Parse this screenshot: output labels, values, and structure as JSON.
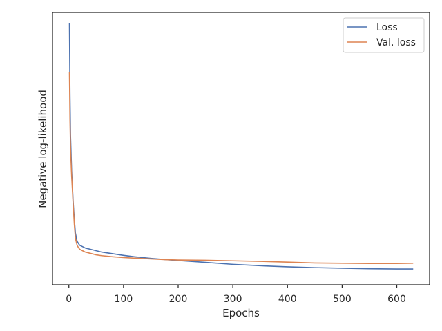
{
  "chart_data": {
    "type": "line",
    "title": "",
    "xlabel": "Epochs",
    "ylabel": "Negative log-likelihood",
    "xlim": [
      -30,
      660
    ],
    "ylim": [
      0,
      1.0
    ],
    "x_ticks": [
      0,
      100,
      200,
      300,
      400,
      500,
      600
    ],
    "y_ticks_shown": false,
    "grid": false,
    "legend_position": "top-right",
    "series": [
      {
        "name": "Loss",
        "color": "#4c72b0",
        "x": [
          1,
          2,
          3,
          5,
          8,
          10,
          12,
          15,
          18,
          20,
          25,
          30,
          40,
          50,
          60,
          80,
          100,
          120,
          150,
          180,
          200,
          250,
          300,
          350,
          400,
          450,
          500,
          550,
          600,
          630
        ],
        "y": [
          0.96,
          0.7,
          0.55,
          0.42,
          0.3,
          0.24,
          0.19,
          0.16,
          0.15,
          0.145,
          0.14,
          0.135,
          0.13,
          0.125,
          0.12,
          0.114,
          0.108,
          0.103,
          0.097,
          0.092,
          0.089,
          0.082,
          0.075,
          0.07,
          0.066,
          0.063,
          0.061,
          0.059,
          0.058,
          0.058
        ]
      },
      {
        "name": "Val. loss",
        "color": "#dd8452",
        "x": [
          1,
          2,
          3,
          5,
          8,
          10,
          12,
          15,
          18,
          20,
          25,
          30,
          40,
          50,
          60,
          80,
          100,
          120,
          150,
          180,
          200,
          250,
          300,
          350,
          400,
          450,
          500,
          550,
          600,
          630
        ],
        "y": [
          0.78,
          0.6,
          0.5,
          0.4,
          0.29,
          0.22,
          0.17,
          0.145,
          0.135,
          0.13,
          0.125,
          0.12,
          0.115,
          0.11,
          0.107,
          0.103,
          0.1,
          0.098,
          0.095,
          0.092,
          0.091,
          0.09,
          0.088,
          0.086,
          0.083,
          0.08,
          0.079,
          0.078,
          0.078,
          0.079
        ]
      }
    ]
  }
}
